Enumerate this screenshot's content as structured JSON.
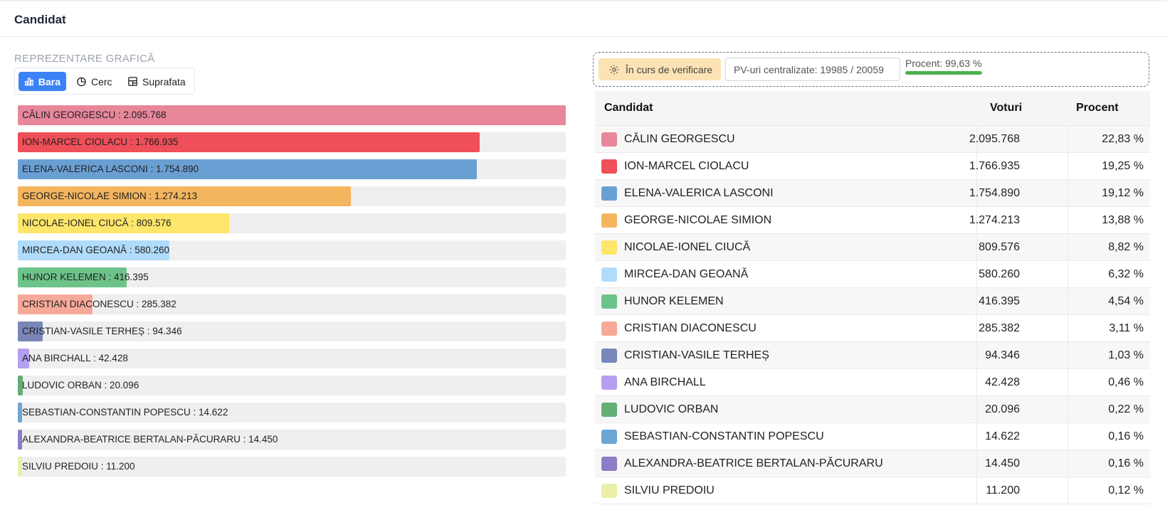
{
  "header": {
    "title": "Candidat"
  },
  "chart_section": {
    "label": "REPREZENTARE GRAFICĂ",
    "tabs": [
      {
        "label": "Bara",
        "icon": "bar-chart-icon",
        "active": true
      },
      {
        "label": "Cerc",
        "icon": "pie-chart-icon",
        "active": false
      },
      {
        "label": "Suprafata",
        "icon": "treemap-icon",
        "active": false
      }
    ]
  },
  "status": {
    "verification_label": "În curs de verificare",
    "pv_label": "PV-uri centralizate: 19985 / 20059",
    "percent_label": "Procent: 99,63 %",
    "percent_value": 99.63
  },
  "table": {
    "headers": {
      "candidate": "Candidat",
      "votes": "Voturi",
      "percent": "Procent"
    }
  },
  "chart_data": {
    "type": "bar",
    "orientation": "horizontal",
    "xlim": [
      0,
      2095768
    ],
    "series": [
      {
        "name": "CĂLIN GEORGESCU",
        "bar_label": "CĂLIN GEORGESCU : 2.095.768",
        "votes": 2095768,
        "votes_text": "2.095.768",
        "percent_text": "22,83 %",
        "color": "#e8879a"
      },
      {
        "name": "ION-MARCEL CIOLACU",
        "bar_label": "ION-MARCEL CIOLACU : 1.766.935",
        "votes": 1766935,
        "votes_text": "1.766.935",
        "percent_text": "19,25 %",
        "color": "#ef4f58"
      },
      {
        "name": "ELENA-VALERICA LASCONI",
        "bar_label": "ELENA-VALERICA LASCONI : 1.754.890",
        "votes": 1754890,
        "votes_text": "1.754.890",
        "percent_text": "19,12 %",
        "color": "#6a9fd4"
      },
      {
        "name": "GEORGE-NICOLAE SIMION",
        "bar_label": "GEORGE-NICOLAE SIMION : 1.274.213",
        "votes": 1274213,
        "votes_text": "1.274.213",
        "percent_text": "13,88 %",
        "color": "#f4b55f"
      },
      {
        "name": "NICOLAE-IONEL CIUCĂ",
        "bar_label": "NICOLAE-IONEL CIUCĂ : 809.576",
        "votes": 809576,
        "votes_text": "809.576",
        "percent_text": "8,82 %",
        "color": "#fde66a"
      },
      {
        "name": "MIRCEA-DAN GEOANĂ",
        "bar_label": "MIRCEA-DAN GEOANĂ : 580.260",
        "votes": 580260,
        "votes_text": "580.260",
        "percent_text": "6,32 %",
        "color": "#b0dbfa"
      },
      {
        "name": "HUNOR KELEMEN",
        "bar_label": "HUNOR KELEMEN : 416.395",
        "votes": 416395,
        "votes_text": "416.395",
        "percent_text": "4,54 %",
        "color": "#6dc389"
      },
      {
        "name": "CRISTIAN DIACONESCU",
        "bar_label": "CRISTIAN DIACONESCU : 285.382",
        "votes": 285382,
        "votes_text": "285.382",
        "percent_text": "3,11 %",
        "color": "#f7a999"
      },
      {
        "name": "CRISTIAN-VASILE TERHEȘ",
        "bar_label": "CRISTIAN-VASILE TERHEȘ : 94.346",
        "votes": 94346,
        "votes_text": "94.346",
        "percent_text": "1,03 %",
        "color": "#7a86b8"
      },
      {
        "name": "ANA BIRCHALL",
        "bar_label": "ANA BIRCHALL : 42.428",
        "votes": 42428,
        "votes_text": "42.428",
        "percent_text": "0,46 %",
        "color": "#b59ff0"
      },
      {
        "name": "LUDOVIC ORBAN",
        "bar_label": "LUDOVIC ORBAN : 20.096",
        "votes": 20096,
        "votes_text": "20.096",
        "percent_text": "0,22 %",
        "color": "#66ad77"
      },
      {
        "name": "SEBASTIAN-CONSTANTIN POPESCU",
        "bar_label": "SEBASTIAN-CONSTANTIN POPESCU : 14.622",
        "votes": 14622,
        "votes_text": "14.622",
        "percent_text": "0,16 %",
        "color": "#6da5d3"
      },
      {
        "name": "ALEXANDRA-BEATRICE BERTALAN-PĂCURARU",
        "bar_label": "ALEXANDRA-BEATRICE BERTALAN-PĂCURARU : 14.450",
        "votes": 14450,
        "votes_text": "14.450",
        "percent_text": "0,16 %",
        "color": "#8d7cc6"
      },
      {
        "name": "SILVIU PREDOIU",
        "bar_label": "SILVIU PREDOIU : 11.200",
        "votes": 11200,
        "votes_text": "11.200",
        "percent_text": "0,12 %",
        "color": "#eaf0a8"
      }
    ]
  }
}
